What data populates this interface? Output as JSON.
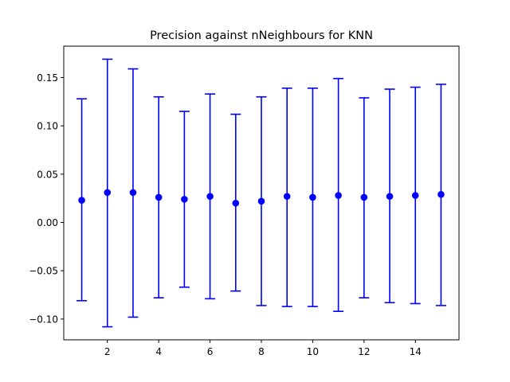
{
  "chart_data": {
    "type": "scatter",
    "title": "Precision against nNeighbours for KNN",
    "xlabel": "",
    "ylabel": "",
    "xlim": [
      0.3,
      15.7
    ],
    "ylim": [
      -0.1215,
      0.1825
    ],
    "x_ticks": [
      2,
      4,
      6,
      8,
      10,
      12,
      14
    ],
    "y_ticks": [
      -0.1,
      -0.05,
      0.0,
      0.05,
      0.1,
      0.15
    ],
    "y_tick_labels": [
      "−0.10",
      "−0.05",
      "0.00",
      "0.05",
      "0.10",
      "0.15"
    ],
    "grid": false,
    "color": "#0000ff",
    "series": [
      {
        "x": [
          1,
          2,
          3,
          4,
          5,
          6,
          7,
          8,
          9,
          10,
          11,
          12,
          13,
          14,
          15
        ],
        "y": [
          0.023,
          0.031,
          0.031,
          0.026,
          0.024,
          0.027,
          0.02,
          0.022,
          0.027,
          0.026,
          0.028,
          0.026,
          0.027,
          0.028,
          0.029
        ],
        "err_upper": [
          0.128,
          0.169,
          0.159,
          0.13,
          0.115,
          0.133,
          0.112,
          0.13,
          0.139,
          0.139,
          0.149,
          0.129,
          0.138,
          0.14,
          0.143
        ],
        "err_lower": [
          -0.081,
          -0.108,
          -0.098,
          -0.078,
          -0.067,
          -0.079,
          -0.071,
          -0.086,
          -0.087,
          -0.087,
          -0.092,
          -0.078,
          -0.083,
          -0.084,
          -0.086
        ]
      }
    ]
  }
}
